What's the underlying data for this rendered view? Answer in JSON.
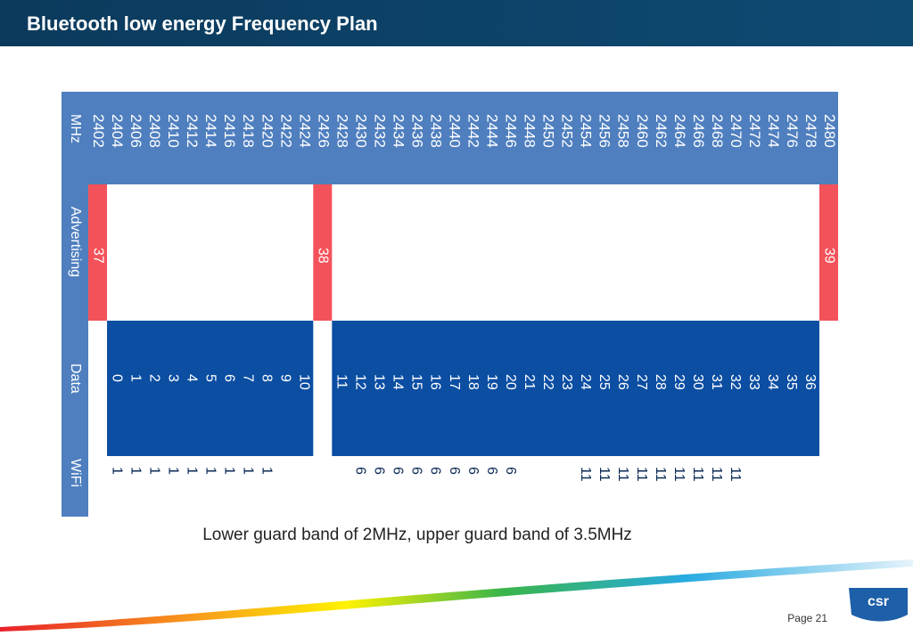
{
  "header": {
    "title": "Bluetooth low energy Frequency Plan"
  },
  "table": {
    "row_labels": [
      "MHz",
      "Advertising",
      "Data",
      "WiFi"
    ],
    "frequencies": [
      2402,
      2404,
      2406,
      2408,
      2410,
      2412,
      2414,
      2416,
      2418,
      2420,
      2422,
      2424,
      2426,
      2428,
      2430,
      2432,
      2434,
      2436,
      2438,
      2440,
      2442,
      2444,
      2446,
      2448,
      2450,
      2452,
      2454,
      2456,
      2458,
      2460,
      2462,
      2464,
      2466,
      2468,
      2470,
      2472,
      2474,
      2476,
      2478,
      2480
    ],
    "advertising": [
      37,
      null,
      null,
      null,
      null,
      null,
      null,
      null,
      null,
      null,
      null,
      null,
      38,
      null,
      null,
      null,
      null,
      null,
      null,
      null,
      null,
      null,
      null,
      null,
      null,
      null,
      null,
      null,
      null,
      null,
      null,
      null,
      null,
      null,
      null,
      null,
      null,
      null,
      null,
      39
    ],
    "data": [
      null,
      0,
      1,
      2,
      3,
      4,
      5,
      6,
      7,
      8,
      9,
      10,
      null,
      11,
      12,
      13,
      14,
      15,
      16,
      17,
      18,
      19,
      20,
      21,
      22,
      23,
      24,
      25,
      26,
      27,
      28,
      29,
      30,
      31,
      32,
      33,
      34,
      35,
      36,
      null
    ],
    "wifi": [
      null,
      1,
      1,
      1,
      1,
      1,
      1,
      1,
      1,
      1,
      null,
      null,
      null,
      null,
      6,
      6,
      6,
      6,
      6,
      6,
      6,
      6,
      6,
      null,
      null,
      null,
      11,
      11,
      11,
      11,
      11,
      11,
      11,
      11,
      11,
      null,
      null,
      null,
      null,
      null
    ]
  },
  "caption": "Lower guard band of 2MHz, upper guard band of 3.5MHz",
  "footer": {
    "logo": "csr",
    "page": "Page 21"
  }
}
